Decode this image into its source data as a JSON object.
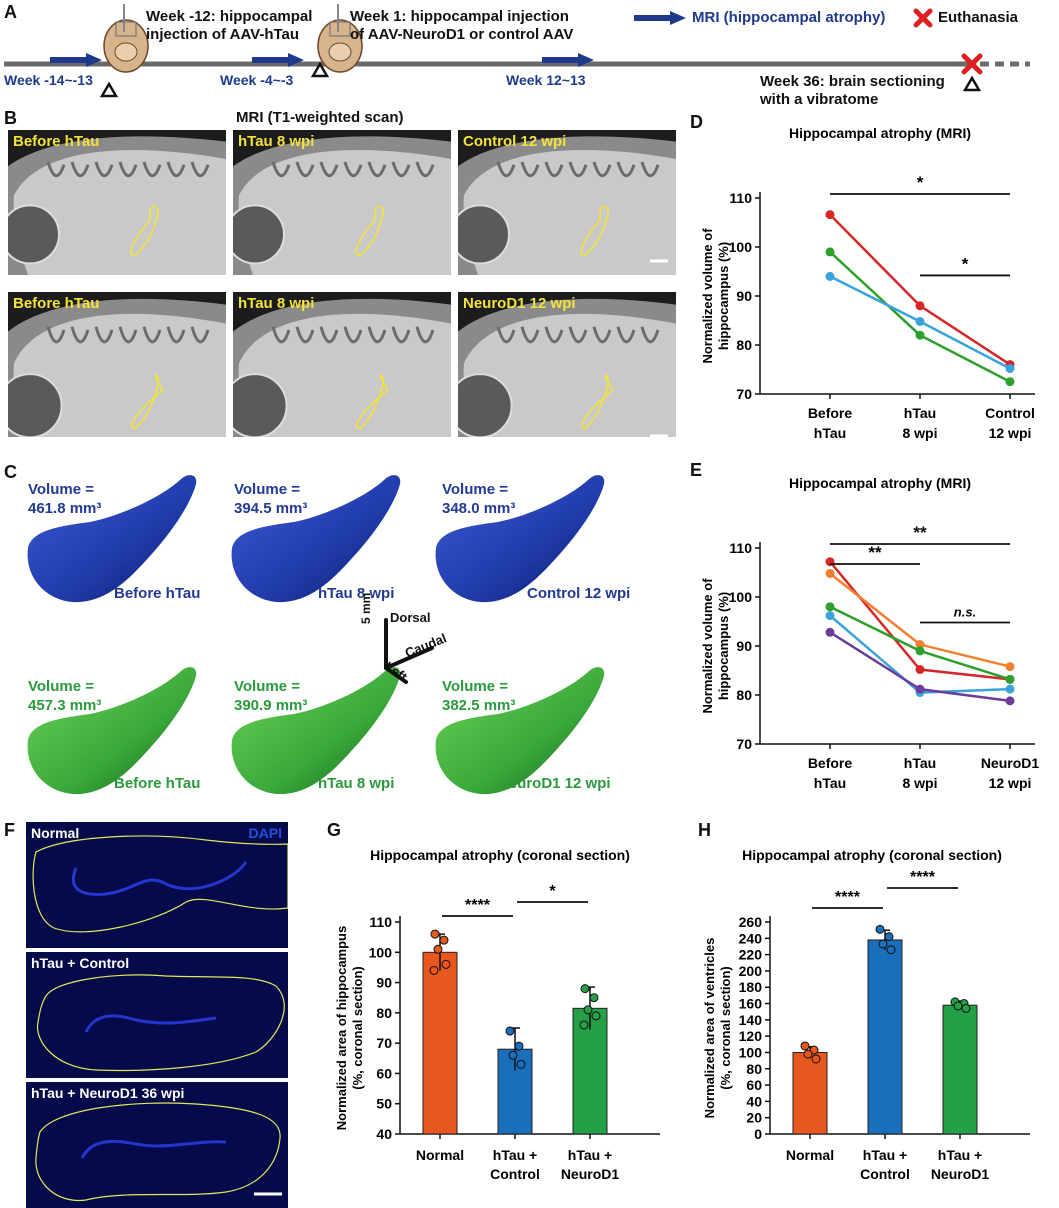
{
  "panel_letters": {
    "a": "A",
    "b": "B",
    "c": "C",
    "d": "D",
    "e": "E",
    "f": "F",
    "g": "G",
    "h": "H"
  },
  "timeline": {
    "event1": "Week -12: hippocampal\ninjection of AAV-hTau",
    "event2": "Week 1: hippocampal injection\nof AAV-NeuroD1 or control AAV",
    "legend_mri": "MRI (hippocampal atrophy)",
    "legend_euth": "Euthanasia",
    "week_a": "Week -14~-13",
    "week_b": "Week -4~-3",
    "week_c": "Week 12~13",
    "event3": "Week 36: brain sectioning\nwith a vibratome",
    "colors": {
      "arrow": "#1f3a8c",
      "cross": "#e02020",
      "line": "#6b6b6b"
    }
  },
  "mri": {
    "title": "MRI (T1-weighted scan)",
    "row1": [
      "Before hTau",
      "hTau 8 wpi",
      "Control 12 wpi"
    ],
    "row2": [
      "Before hTau",
      "hTau 8 wpi",
      "NeuroD1 12 wpi"
    ],
    "outline_color": "#f2e33b"
  },
  "volumes": {
    "row1": [
      {
        "label": "Volume =",
        "value": "461.8 mm³",
        "name": "Before hTau"
      },
      {
        "label": "Volume =",
        "value": "394.5 mm³",
        "name": "hTau 8 wpi"
      },
      {
        "label": "Volume =",
        "value": "348.0 mm³",
        "name": "Control 12 wpi"
      }
    ],
    "row2": [
      {
        "label": "Volume =",
        "value": "457.3 mm³",
        "name": "Before hTau"
      },
      {
        "label": "Volume =",
        "value": "390.9 mm³",
        "name": "hTau 8 wpi"
      },
      {
        "label": "Volume =",
        "value": "382.5 mm³",
        "name": "NeuroD1 12 wpi"
      }
    ],
    "axes": {
      "scale": "5 mm",
      "dorsal": "Dorsal",
      "caudal": "Caudal",
      "left": "Left"
    },
    "colors": {
      "blue": "#223a93",
      "green": "#2a9a3c"
    }
  },
  "histology": {
    "panels": [
      "Normal",
      "hTau + Control",
      "hTau + NeuroD1 36 wpi"
    ],
    "stain": "DAPI"
  },
  "chart_data": [
    {
      "id": "D",
      "type": "line",
      "title": "Hippocampal atrophy (MRI)",
      "ylabel": "Normalized volume of hippocampus (%)",
      "categories": [
        "Before hTau",
        "hTau 8 wpi",
        "Control 12 wpi"
      ],
      "ylim": [
        70,
        110
      ],
      "yticks": [
        70,
        80,
        90,
        100,
        110
      ],
      "series": [
        {
          "color": "#d62728",
          "values": [
            106.6,
            88.0,
            76.0
          ]
        },
        {
          "color": "#2ca02c",
          "values": [
            99.0,
            82.0,
            72.5
          ]
        },
        {
          "color": "#3aa3dc",
          "values": [
            94.0,
            84.8,
            75.2
          ]
        }
      ],
      "significance": [
        {
          "from": 0,
          "to": 2,
          "label": "*"
        },
        {
          "from": 1,
          "to": 2,
          "label": "*"
        }
      ]
    },
    {
      "id": "E",
      "type": "line",
      "title": "Hippocampal atrophy (MRI)",
      "ylabel": "Normalized volume of hippocampus (%)",
      "categories": [
        "Before hTau",
        "hTau 8 wpi",
        "NeuroD1 12 wpi"
      ],
      "ylim": [
        70,
        110
      ],
      "yticks": [
        70,
        80,
        90,
        100,
        110
      ],
      "series": [
        {
          "color": "#d62728",
          "values": [
            107.2,
            85.2,
            83.2
          ]
        },
        {
          "color": "#f08030",
          "values": [
            104.8,
            90.3,
            85.8
          ]
        },
        {
          "color": "#2ca02c",
          "values": [
            98.0,
            89.0,
            83.2
          ]
        },
        {
          "color": "#3aa3dc",
          "values": [
            96.2,
            80.5,
            81.2
          ]
        },
        {
          "color": "#6a3d9a",
          "values": [
            92.8,
            81.2,
            78.8
          ]
        }
      ],
      "significance": [
        {
          "from": 0,
          "to": 2,
          "label": "**"
        },
        {
          "from": 0,
          "to": 1,
          "label": "**"
        },
        {
          "from": 1,
          "to": 2,
          "label": "n.s."
        }
      ]
    },
    {
      "id": "G",
      "type": "bar",
      "title": "Hippocampal atrophy (coronal section)",
      "ylabel": "Normalized area of hippocampus (%, coronal section)",
      "categories": [
        "Normal",
        "hTau + Control",
        "hTau + NeuroD1"
      ],
      "values": [
        100,
        68,
        81.5
      ],
      "errors": [
        6,
        7,
        7
      ],
      "colors": [
        "#e8571e",
        "#1a6fbd",
        "#25a046"
      ],
      "points": [
        [
          106,
          104,
          101,
          96,
          94
        ],
        [
          74,
          69,
          66,
          63
        ],
        [
          88,
          85,
          81,
          79,
          76
        ]
      ],
      "ylim": [
        40,
        110
      ],
      "yticks": [
        40,
        50,
        60,
        70,
        80,
        90,
        100,
        110
      ],
      "significance": [
        {
          "from": 0,
          "to": 1,
          "label": "****"
        },
        {
          "from": 1,
          "to": 2,
          "label": "*"
        }
      ]
    },
    {
      "id": "H",
      "type": "bar",
      "title": "Hippocampal atrophy (coronal section)",
      "ylabel": "Normalized area of ventricles (%, coronal section)",
      "categories": [
        "Normal",
        "hTau + Control",
        "hTau + NeuroD1"
      ],
      "values": [
        100,
        238,
        158
      ],
      "errors": [
        7,
        12,
        5
      ],
      "colors": [
        "#e8571e",
        "#1a6fbd",
        "#25a046"
      ],
      "points": [
        [
          108,
          103,
          98,
          92
        ],
        [
          251,
          242,
          233,
          226
        ],
        [
          162,
          160,
          157,
          154
        ]
      ],
      "ylim": [
        0,
        260
      ],
      "yticks": [
        0,
        20,
        40,
        60,
        80,
        100,
        120,
        140,
        160,
        180,
        200,
        220,
        240,
        260
      ],
      "significance": [
        {
          "from": 0,
          "to": 1,
          "label": "****"
        },
        {
          "from": 1,
          "to": 2,
          "label": "****"
        }
      ]
    }
  ]
}
